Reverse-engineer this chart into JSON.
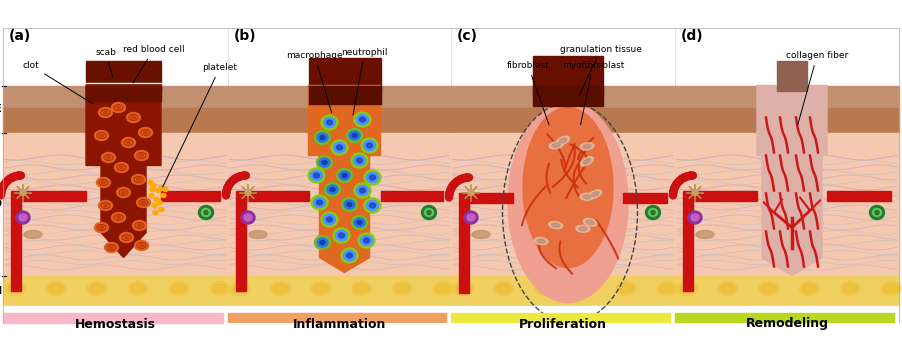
{
  "panels": [
    "(a)",
    "(b)",
    "(c)",
    "(d)"
  ],
  "panel_labels": [
    "Hemostasis",
    "Inflammation",
    "Proliferation",
    "Remodeling"
  ],
  "banner_colors": [
    "#f9b8c8",
    "#f0a060",
    "#ece840",
    "#b8d820"
  ],
  "bg_color": "#ffffff",
  "skin_epidermis": "#c8906a",
  "skin_epidermis2": "#d4a880",
  "skin_dermis": "#f5c8b0",
  "skin_hypodermis": "#f0d060",
  "wound_a": "#8b1500",
  "wound_b": "#e06820",
  "wound_c_outer": "#f0a090",
  "wound_c_inner": "#e88050",
  "wound_d": "#ddb0a8",
  "scab_color": "#6a1000",
  "vessel_color": "#cc1010",
  "rbc_color": "#e05818",
  "platelet_color": "#ffaa00",
  "macro_green": "#80cc10",
  "macro_blue": "#3080ff",
  "macro_dark": "#1050cc",
  "neutro_green": "#90d010",
  "neutro_blue": "#60a0ff",
  "purple_cell": "#9030a0",
  "green_cell_outer": "#208020",
  "green_cell_mid": "#70bb70",
  "star_color": "#c09050",
  "collagen_red": "#cc1818"
}
